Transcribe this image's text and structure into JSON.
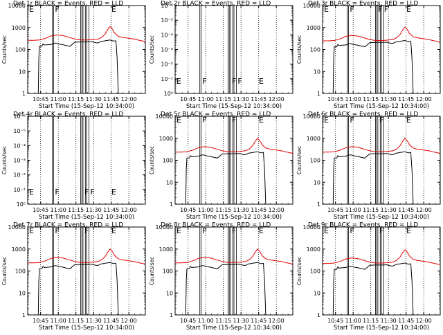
{
  "colors": {
    "events": "#000000",
    "lld": "#e00000",
    "axis": "#000000"
  },
  "x_axis": {
    "label": "Start Time (15-Sep-12 10:34:00)",
    "ticks": [
      "10:45",
      "11:00",
      "11:15",
      "11:30",
      "11:45",
      "12:00"
    ],
    "tick_minutes": [
      11,
      26,
      41,
      56,
      71,
      86
    ],
    "range_minutes": [
      0,
      100
    ]
  },
  "y_axis_label": "Counts/sec",
  "vertical_markers": {
    "dotted_minutes": [
      11,
      26,
      41,
      56,
      71,
      86
    ],
    "solid_minutes": [
      21,
      22,
      45,
      46,
      47,
      49,
      50,
      52
    ]
  },
  "chart_data": [
    {
      "type": "line",
      "title": "Det 1r BLACK = Events, RED = LLD",
      "yscale": "log",
      "ylim": [
        1,
        10000
      ],
      "ytick_labels": [
        "1",
        "10",
        "100",
        "1000",
        "10000"
      ],
      "has_data": true,
      "scale": 1.0,
      "flag_labels": [
        {
          "text": "E",
          "minute": 0,
          "pos": "top"
        },
        {
          "text": "F",
          "minute": 22,
          "pos": "top"
        },
        {
          "text": "E",
          "minute": 70,
          "pos": "top"
        }
      ],
      "series": [
        {
          "role": "events"
        },
        {
          "role": "lld"
        }
      ]
    },
    {
      "type": "line",
      "title": "Det 2r BLACK = Events, RED = LLD",
      "yscale": "log",
      "ylim": [
        1,
        1e-06
      ],
      "ytick_labels": [
        "10⁰",
        "10⁻¹",
        "10⁻²",
        "10⁻³",
        "10⁻⁴",
        "10⁻⁵",
        "10⁻⁶"
      ],
      "has_data": false,
      "scale": 1.0,
      "flag_labels": [
        {
          "text": "E",
          "minute": 0,
          "pos": "bottom"
        },
        {
          "text": "F",
          "minute": 22,
          "pos": "bottom"
        },
        {
          "text": "F",
          "minute": 47,
          "pos": "bottom"
        },
        {
          "text": "F",
          "minute": 52,
          "pos": "bottom"
        },
        {
          "text": "E",
          "minute": 70,
          "pos": "bottom"
        }
      ],
      "series": []
    },
    {
      "type": "line",
      "title": "Det 3r BLACK = Events, RED = LLD",
      "yscale": "log",
      "ylim": [
        1,
        10000
      ],
      "ytick_labels": [
        "1",
        "10",
        "100",
        "1000",
        "10000"
      ],
      "has_data": true,
      "scale": 0.95,
      "flag_labels": [
        {
          "text": "E",
          "minute": 0,
          "pos": "top"
        },
        {
          "text": "F",
          "minute": 22,
          "pos": "top"
        },
        {
          "text": "F",
          "minute": 46,
          "pos": "top"
        },
        {
          "text": "F",
          "minute": 51,
          "pos": "top"
        },
        {
          "text": "E",
          "minute": 70,
          "pos": "top"
        }
      ],
      "series": [
        {
          "role": "events"
        },
        {
          "role": "lld"
        }
      ]
    },
    {
      "type": "line",
      "title": "Det 4r BLACK = Events, RED = LLD",
      "yscale": "log",
      "ylim": [
        1,
        1e-06
      ],
      "ytick_labels": [
        "10⁰",
        "10⁻¹",
        "10⁻²",
        "10⁻³",
        "10⁻⁴",
        "10⁻⁵",
        "10⁻⁶"
      ],
      "has_data": false,
      "scale": 1.0,
      "flag_labels": [
        {
          "text": "E",
          "minute": 0,
          "pos": "bottom"
        },
        {
          "text": "F",
          "minute": 22,
          "pos": "bottom"
        },
        {
          "text": "F",
          "minute": 47,
          "pos": "bottom"
        },
        {
          "text": "F",
          "minute": 52,
          "pos": "bottom"
        },
        {
          "text": "E",
          "minute": 70,
          "pos": "bottom"
        }
      ],
      "series": []
    },
    {
      "type": "line",
      "title": "Det 5r BLACK = Events, RED = LLD",
      "yscale": "log",
      "ylim": [
        1,
        10000
      ],
      "ytick_labels": [
        "1",
        "10",
        "100",
        "1000",
        "10000"
      ],
      "has_data": true,
      "scale": 0.9,
      "flag_labels": [
        {
          "text": "E",
          "minute": 0,
          "pos": "top"
        },
        {
          "text": "F",
          "minute": 22,
          "pos": "top"
        },
        {
          "text": "F",
          "minute": 47,
          "pos": "top"
        },
        {
          "text": "E",
          "minute": 70,
          "pos": "top"
        }
      ],
      "series": [
        {
          "role": "events"
        },
        {
          "role": "lld"
        }
      ]
    },
    {
      "type": "line",
      "title": "Det 6r BLACK = Events, RED = LLD",
      "yscale": "log",
      "ylim": [
        1,
        10000
      ],
      "ytick_labels": [
        "1",
        "10",
        "100",
        "1000",
        "10000"
      ],
      "has_data": true,
      "scale": 0.9,
      "flag_labels": [
        {
          "text": "E",
          "minute": 0,
          "pos": "top"
        },
        {
          "text": "F",
          "minute": 22,
          "pos": "top"
        },
        {
          "text": "F",
          "minute": 47,
          "pos": "top"
        },
        {
          "text": "E",
          "minute": 70,
          "pos": "top"
        }
      ],
      "series": [
        {
          "role": "events"
        },
        {
          "role": "lld"
        }
      ]
    },
    {
      "type": "line",
      "title": "Det 7r BLACK = Events, RED = LLD",
      "yscale": "log",
      "ylim": [
        1,
        10000
      ],
      "ytick_labels": [
        "1",
        "10",
        "100",
        "1000",
        "10000"
      ],
      "has_data": true,
      "scale": 0.9,
      "flag_labels": [
        {
          "text": "E",
          "minute": 0,
          "pos": "top"
        },
        {
          "text": "F",
          "minute": 22,
          "pos": "top"
        },
        {
          "text": "F",
          "minute": 47,
          "pos": "top"
        },
        {
          "text": "E",
          "minute": 70,
          "pos": "top"
        }
      ],
      "series": [
        {
          "role": "events"
        },
        {
          "role": "lld"
        }
      ]
    },
    {
      "type": "line",
      "title": "Det 8r BLACK = Events, RED = LLD",
      "yscale": "log",
      "ylim": [
        1,
        10000
      ],
      "ytick_labels": [
        "1",
        "10",
        "100",
        "1000",
        "10000"
      ],
      "has_data": true,
      "scale": 0.9,
      "flag_labels": [
        {
          "text": "E",
          "minute": 0,
          "pos": "top"
        },
        {
          "text": "F",
          "minute": 22,
          "pos": "top"
        },
        {
          "text": "F",
          "minute": 47,
          "pos": "top"
        },
        {
          "text": "E",
          "minute": 70,
          "pos": "top"
        }
      ],
      "series": [
        {
          "role": "events"
        },
        {
          "role": "lld"
        }
      ]
    },
    {
      "type": "line",
      "title": "Det 9r BLACK = Events, RED = LLD",
      "yscale": "log",
      "ylim": [
        1,
        10000
      ],
      "ytick_labels": [
        "1",
        "10",
        "100",
        "1000",
        "10000"
      ],
      "has_data": true,
      "scale": 0.85,
      "flag_labels": [
        {
          "text": "E",
          "minute": 0,
          "pos": "top"
        },
        {
          "text": "F",
          "minute": 22,
          "pos": "top"
        },
        {
          "text": "F",
          "minute": 47,
          "pos": "top"
        },
        {
          "text": "E",
          "minute": 70,
          "pos": "top"
        }
      ],
      "series": [
        {
          "role": "events"
        },
        {
          "role": "lld"
        }
      ]
    }
  ],
  "lld_profile": {
    "minutes": [
      0,
      5,
      10,
      15,
      20,
      25,
      30,
      35,
      40,
      45,
      50,
      55,
      60,
      63,
      66,
      68,
      70,
      72,
      74,
      77,
      80,
      85,
      90,
      95,
      100
    ],
    "counts": [
      260,
      260,
      270,
      320,
      420,
      460,
      430,
      360,
      300,
      270,
      270,
      280,
      300,
      360,
      520,
      800,
      1100,
      850,
      550,
      400,
      360,
      330,
      300,
      260,
      230
    ]
  },
  "events_profile": {
    "minutes": [
      0,
      9,
      9.5,
      10,
      12,
      13,
      14,
      20,
      22,
      24,
      27,
      30,
      33,
      36,
      40,
      45,
      50,
      55,
      58,
      60,
      62,
      66,
      70,
      73,
      75,
      76,
      77
    ],
    "counts": [
      0,
      0,
      40,
      140,
      140,
      180,
      160,
      170,
      190,
      195,
      175,
      165,
      150,
      140,
      215,
      220,
      220,
      225,
      200,
      200,
      230,
      250,
      270,
      240,
      250,
      40,
      0
    ]
  }
}
